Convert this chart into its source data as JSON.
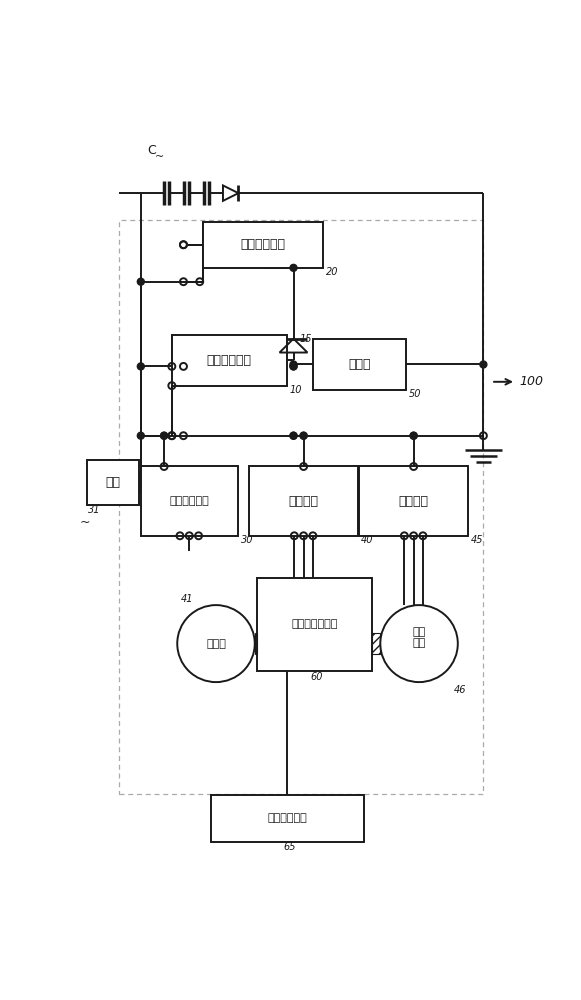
{
  "bg": "#ffffff",
  "lc": "#1a1a1a",
  "labels": {
    "voltage_box": "电压检测电路",
    "const_curr_box": "恒定电流电路",
    "control_box": "控制部",
    "load_ctrl_box": "负载控制电路",
    "rectifier_box": "整流电路",
    "drive_box": "驱动电路",
    "load_box": "负载",
    "ext_drive_box": "外部驱动装置",
    "engine_box": "引擎（内燃机）",
    "generator_circle": "发电机",
    "starter_circle": "起动\n可达",
    "C_label": "C",
    "sys_num": "100"
  },
  "nums": {
    "voltage": "20",
    "const_curr": "10",
    "control": "50",
    "load_ctrl": "30",
    "rectifier": "40",
    "drive": "45",
    "load": "31",
    "ext_drive": "65",
    "engine": "60",
    "generator": "41",
    "starter": "46",
    "diode": "15"
  }
}
